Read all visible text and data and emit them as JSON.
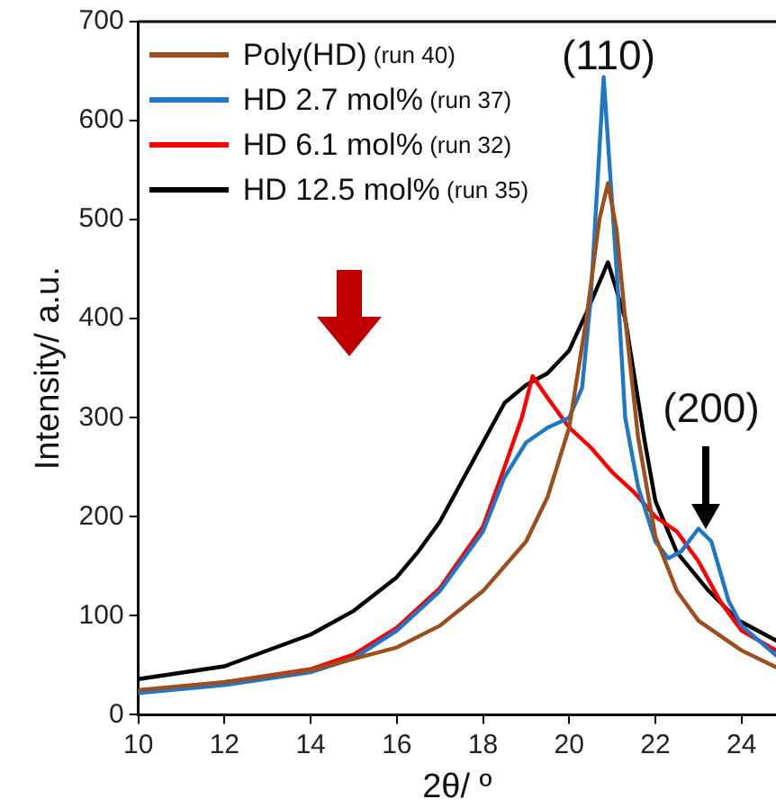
{
  "chart_data": {
    "type": "line",
    "xlabel": "2θ/ º",
    "ylabel": "Intensity/ a.u.",
    "xlim": [
      10,
      24.8
    ],
    "xticks": [
      10,
      12,
      14,
      16,
      18,
      20,
      22,
      24
    ],
    "ylim": [
      0,
      700
    ],
    "yticks": [
      0,
      100,
      200,
      300,
      400,
      500,
      600,
      700
    ],
    "grid": false,
    "legend": "top left",
    "marker": "none",
    "annotations": [
      "(110)",
      "(200)"
    ],
    "series": [
      {
        "name": "Poly(HD) (run 40)",
        "color": "#9c4f1c",
        "x": [
          10,
          12,
          14,
          16,
          17,
          18,
          19,
          19.5,
          20,
          20.4,
          20.7,
          20.9,
          21.1,
          21.3,
          21.6,
          22,
          22.5,
          23,
          24,
          24.8
        ],
        "values": [
          25,
          33,
          45,
          68,
          90,
          125,
          175,
          220,
          290,
          400,
          500,
          537,
          490,
          400,
          280,
          180,
          125,
          95,
          65,
          48
        ]
      },
      {
        "name": "HD 2.7 mol% (run 37)",
        "color": "#1f77c8",
        "x": [
          10,
          12,
          14,
          15,
          16,
          17,
          18,
          18.5,
          19,
          19.5,
          20,
          20.3,
          20.5,
          20.8,
          21.1,
          21.3,
          21.6,
          22,
          22.3,
          22.6,
          23,
          23.3,
          23.7,
          24,
          24.8
        ],
        "values": [
          22,
          30,
          43,
          57,
          85,
          125,
          185,
          240,
          275,
          290,
          300,
          330,
          420,
          644,
          450,
          300,
          230,
          175,
          158,
          165,
          188,
          175,
          115,
          90,
          60
        ]
      },
      {
        "name": "HD 6.1 mol% (run 32)",
        "color": "#ff0000",
        "x": [
          10,
          12,
          14,
          15,
          16,
          17,
          18,
          18.5,
          18.9,
          19.15,
          19.5,
          20,
          20.5,
          21,
          21.5,
          22,
          22.5,
          23,
          23.5,
          24,
          24.8
        ],
        "values": [
          24,
          33,
          46,
          61,
          88,
          128,
          190,
          250,
          300,
          342,
          320,
          290,
          270,
          245,
          225,
          200,
          185,
          155,
          115,
          85,
          65
        ]
      },
      {
        "name": "HD 12.5 mol% (run 35)",
        "color": "#000000",
        "x": [
          10,
          12,
          14,
          15,
          16,
          16.5,
          17,
          17.5,
          18,
          18.5,
          19,
          19.5,
          20,
          20.4,
          20.9,
          21.3,
          21.75,
          22,
          22.5,
          23.2,
          23.9,
          24.8
        ],
        "values": [
          36,
          49,
          81,
          105,
          139,
          165,
          195,
          235,
          275,
          315,
          333,
          345,
          368,
          406,
          457,
          400,
          277,
          216,
          164,
          127,
          96,
          75
        ]
      }
    ]
  }
}
